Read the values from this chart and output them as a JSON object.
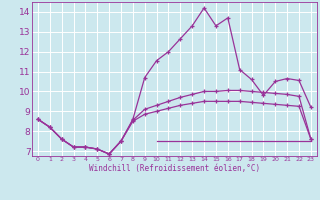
{
  "background_color": "#cce8ee",
  "grid_color": "#ffffff",
  "line_color": "#993399",
  "marker": "+",
  "ylabel_ticks": [
    7,
    8,
    9,
    10,
    11,
    12,
    13,
    14
  ],
  "xlabel_ticks": [
    0,
    1,
    2,
    3,
    4,
    5,
    6,
    7,
    8,
    9,
    10,
    11,
    12,
    13,
    14,
    15,
    16,
    17,
    18,
    19,
    20,
    21,
    22,
    23
  ],
  "xlabel_label": "Windchill (Refroidissement éolien,°C)",
  "xlim": [
    -0.5,
    23.5
  ],
  "ylim": [
    6.75,
    14.5
  ],
  "series": [
    {
      "x": [
        0,
        1,
        2,
        3,
        4,
        5,
        6,
        7,
        8,
        9,
        10,
        11,
        12,
        13,
        14,
        15,
        16,
        17,
        18,
        19,
        20,
        21,
        22,
        23
      ],
      "y": [
        8.6,
        8.2,
        7.6,
        7.2,
        7.2,
        7.1,
        6.85,
        7.5,
        8.6,
        10.7,
        11.55,
        12.0,
        12.65,
        13.3,
        14.2,
        13.3,
        13.7,
        11.1,
        10.6,
        9.8,
        10.5,
        10.65,
        10.55,
        9.2
      ],
      "no_marker": false
    },
    {
      "x": [
        0,
        1,
        2,
        3,
        4,
        5,
        6,
        7,
        8,
        9,
        10,
        11,
        12,
        13,
        14,
        15,
        16,
        17,
        18,
        19,
        20,
        21,
        22,
        23
      ],
      "y": [
        8.6,
        8.2,
        7.6,
        7.2,
        7.2,
        7.1,
        6.85,
        7.5,
        8.55,
        9.1,
        9.3,
        9.5,
        9.7,
        9.85,
        10.0,
        10.0,
        10.05,
        10.05,
        10.0,
        9.95,
        9.9,
        9.85,
        9.75,
        7.6
      ],
      "no_marker": false
    },
    {
      "x": [
        0,
        1,
        2,
        3,
        4,
        5,
        6,
        7,
        8,
        9,
        10,
        11,
        12,
        13,
        14,
        15,
        16,
        17,
        18,
        19,
        20,
        21,
        22,
        23
      ],
      "y": [
        8.6,
        8.2,
        7.6,
        7.2,
        7.2,
        7.1,
        6.85,
        7.5,
        8.5,
        8.85,
        9.0,
        9.15,
        9.3,
        9.4,
        9.5,
        9.5,
        9.5,
        9.5,
        9.45,
        9.4,
        9.35,
        9.3,
        9.25,
        7.6
      ],
      "no_marker": false
    },
    {
      "x": [
        10,
        23
      ],
      "y": [
        7.5,
        7.5
      ],
      "no_marker": true
    }
  ]
}
